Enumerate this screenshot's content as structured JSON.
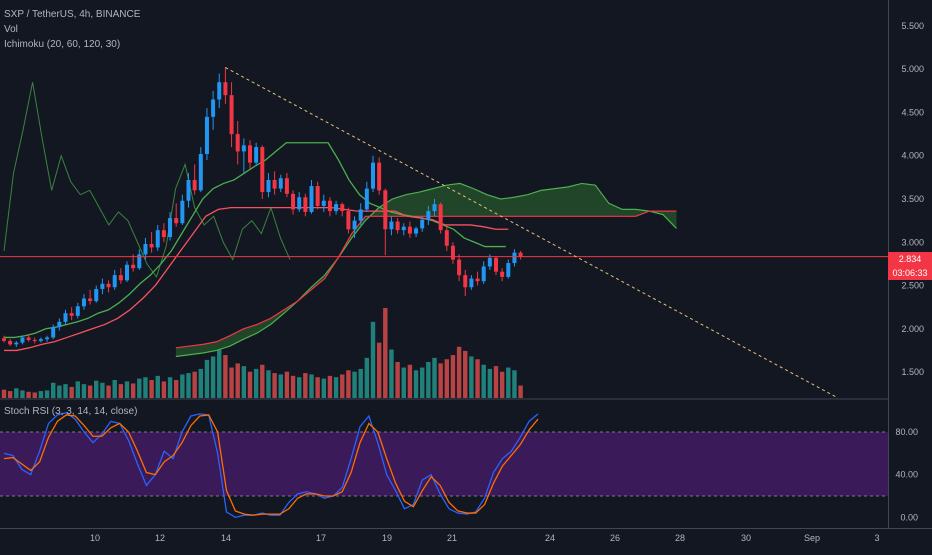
{
  "header": {
    "symbol_line": "SXP / TetherUS, 4h, BINANCE",
    "volume_label": "Vol",
    "ichimoku_label": "Ichimoku (20, 60, 120, 30)",
    "stoch_label": "Stoch RSI (3, 3, 14, 14, close)"
  },
  "price_scale": {
    "current_price": "2.834",
    "countdown": "03:06:33"
  },
  "colors": {
    "background": "#131722",
    "up": "#2196f3",
    "down": "#f23645",
    "vol_up": "#26a69a",
    "vol_down": "#ef5350",
    "cloud": "#2e6b2e",
    "stoch_band": "#3b1a5a"
  },
  "chart_data": [
    {
      "type": "candlestick",
      "symbol": "SXP / TetherUS",
      "timeframe": "4h",
      "exchange": "BINANCE",
      "y_range": [
        1.2,
        5.8
      ],
      "y_ticks": [
        "5.500",
        "5.000",
        "4.500",
        "4.000",
        "3.500",
        "3.000",
        "2.500",
        "2.000",
        "1.500"
      ],
      "x_ticks": [
        "10",
        "12",
        "14",
        "17",
        "19",
        "21",
        "24",
        "26",
        "28",
        "30",
        "Sep",
        "3"
      ],
      "last_price": 2.834,
      "candles": [
        [
          1.89,
          1.92,
          1.84,
          1.86
        ],
        [
          1.86,
          1.88,
          1.8,
          1.82
        ],
        [
          1.82,
          1.86,
          1.79,
          1.84
        ],
        [
          1.84,
          1.92,
          1.82,
          1.9
        ],
        [
          1.9,
          1.94,
          1.85,
          1.87
        ],
        [
          1.87,
          1.9,
          1.83,
          1.86
        ],
        [
          1.86,
          1.9,
          1.84,
          1.88
        ],
        [
          1.88,
          1.92,
          1.85,
          1.9
        ],
        [
          1.9,
          2.05,
          1.88,
          2.02
        ],
        [
          2.02,
          2.12,
          1.98,
          2.08
        ],
        [
          2.08,
          2.22,
          2.05,
          2.18
        ],
        [
          2.18,
          2.25,
          2.1,
          2.15
        ],
        [
          2.15,
          2.3,
          2.12,
          2.26
        ],
        [
          2.26,
          2.4,
          2.22,
          2.35
        ],
        [
          2.35,
          2.45,
          2.28,
          2.32
        ],
        [
          2.32,
          2.5,
          2.3,
          2.46
        ],
        [
          2.46,
          2.58,
          2.4,
          2.52
        ],
        [
          2.52,
          2.56,
          2.42,
          2.48
        ],
        [
          2.48,
          2.68,
          2.45,
          2.62
        ],
        [
          2.62,
          2.7,
          2.52,
          2.56
        ],
        [
          2.56,
          2.78,
          2.54,
          2.74
        ],
        [
          2.74,
          2.86,
          2.66,
          2.7
        ],
        [
          2.7,
          2.92,
          2.68,
          2.86
        ],
        [
          2.86,
          3.05,
          2.8,
          2.98
        ],
        [
          2.98,
          3.12,
          2.88,
          2.94
        ],
        [
          2.94,
          3.2,
          2.9,
          3.14
        ],
        [
          3.14,
          3.22,
          3.0,
          3.06
        ],
        [
          3.06,
          3.35,
          3.02,
          3.28
        ],
        [
          3.28,
          3.45,
          3.18,
          3.22
        ],
        [
          3.22,
          3.55,
          3.2,
          3.48
        ],
        [
          3.48,
          3.8,
          3.4,
          3.72
        ],
        [
          3.72,
          3.9,
          3.55,
          3.6
        ],
        [
          3.6,
          4.1,
          3.58,
          4.02
        ],
        [
          4.02,
          4.55,
          3.95,
          4.45
        ],
        [
          4.45,
          4.75,
          4.3,
          4.65
        ],
        [
          4.65,
          4.95,
          4.55,
          4.85
        ],
        [
          4.85,
          5.02,
          4.6,
          4.7
        ],
        [
          4.7,
          4.85,
          4.1,
          4.25
        ],
        [
          4.25,
          4.4,
          3.9,
          4.05
        ],
        [
          4.05,
          4.2,
          3.8,
          4.12
        ],
        [
          4.12,
          4.18,
          3.85,
          3.92
        ],
        [
          3.92,
          4.15,
          3.88,
          4.1
        ],
        [
          4.1,
          4.12,
          3.5,
          3.58
        ],
        [
          3.58,
          3.8,
          3.52,
          3.72
        ],
        [
          3.72,
          3.82,
          3.55,
          3.62
        ],
        [
          3.62,
          3.78,
          3.58,
          3.74
        ],
        [
          3.74,
          3.8,
          3.52,
          3.56
        ],
        [
          3.56,
          3.6,
          3.32,
          3.38
        ],
        [
          3.38,
          3.58,
          3.35,
          3.52
        ],
        [
          3.52,
          3.56,
          3.3,
          3.35
        ],
        [
          3.35,
          3.72,
          3.33,
          3.65
        ],
        [
          3.65,
          3.7,
          3.38,
          3.42
        ],
        [
          3.42,
          3.55,
          3.35,
          3.48
        ],
        [
          3.48,
          3.52,
          3.3,
          3.36
        ],
        [
          3.36,
          3.48,
          3.32,
          3.44
        ],
        [
          3.44,
          3.46,
          3.3,
          3.36
        ],
        [
          3.36,
          3.4,
          3.1,
          3.15
        ],
        [
          3.15,
          3.3,
          3.05,
          3.25
        ],
        [
          3.25,
          3.45,
          3.2,
          3.38
        ],
        [
          3.38,
          3.7,
          3.35,
          3.62
        ],
        [
          3.62,
          4.0,
          3.58,
          3.92
        ],
        [
          3.92,
          3.98,
          3.55,
          3.6
        ],
        [
          3.6,
          3.62,
          2.85,
          3.15
        ],
        [
          3.15,
          3.3,
          3.08,
          3.24
        ],
        [
          3.24,
          3.28,
          3.1,
          3.14
        ],
        [
          3.14,
          3.22,
          3.08,
          3.18
        ],
        [
          3.18,
          3.24,
          3.05,
          3.1
        ],
        [
          3.1,
          3.18,
          3.06,
          3.16
        ],
        [
          3.16,
          3.3,
          3.12,
          3.26
        ],
        [
          3.26,
          3.42,
          3.2,
          3.36
        ],
        [
          3.36,
          3.5,
          3.3,
          3.44
        ],
        [
          3.44,
          3.46,
          3.1,
          3.14
        ],
        [
          3.14,
          3.18,
          2.9,
          2.96
        ],
        [
          2.96,
          3.0,
          2.75,
          2.8
        ],
        [
          2.8,
          2.86,
          2.55,
          2.62
        ],
        [
          2.62,
          2.68,
          2.38,
          2.48
        ],
        [
          2.48,
          2.62,
          2.45,
          2.58
        ],
        [
          2.58,
          2.66,
          2.5,
          2.55
        ],
        [
          2.55,
          2.78,
          2.52,
          2.72
        ],
        [
          2.72,
          2.86,
          2.68,
          2.82
        ],
        [
          2.82,
          2.84,
          2.62,
          2.66
        ],
        [
          2.66,
          2.7,
          2.55,
          2.6
        ],
        [
          2.6,
          2.8,
          2.58,
          2.76
        ],
        [
          2.76,
          2.92,
          2.72,
          2.88
        ],
        [
          2.88,
          2.9,
          2.8,
          2.834
        ]
      ],
      "volume": [
        12,
        10,
        14,
        11,
        9,
        8,
        10,
        11,
        22,
        18,
        20,
        16,
        24,
        20,
        18,
        25,
        22,
        18,
        26,
        20,
        24,
        21,
        28,
        30,
        26,
        32,
        24,
        30,
        26,
        34,
        36,
        38,
        42,
        55,
        60,
        70,
        62,
        44,
        50,
        46,
        38,
        42,
        48,
        40,
        36,
        34,
        38,
        32,
        30,
        36,
        34,
        30,
        28,
        32,
        30,
        34,
        40,
        38,
        42,
        58,
        110,
        80,
        130,
        70,
        52,
        44,
        48,
        40,
        44,
        52,
        58,
        50,
        56,
        62,
        74,
        68,
        60,
        56,
        48,
        42,
        46,
        38,
        44,
        40,
        18
      ],
      "ichimoku": {
        "conversion": [
          1.9,
          1.9,
          1.92,
          1.95,
          2.0,
          2.02,
          2.05,
          2.08,
          2.12,
          2.18,
          2.22,
          2.3,
          2.4,
          2.52,
          2.62,
          2.75,
          2.9,
          3.1,
          3.3,
          3.5,
          3.62,
          3.68,
          3.72,
          3.8,
          3.88,
          3.95,
          4.05,
          4.15,
          4.15,
          4.15,
          4.15,
          4.15,
          3.95,
          3.72,
          3.55,
          3.45,
          3.4,
          3.35,
          3.32,
          3.3,
          3.28,
          3.25,
          3.2,
          3.15,
          3.05,
          3.0,
          2.95,
          2.95,
          2.95
        ],
        "base": [
          1.75,
          1.75,
          1.78,
          1.82,
          1.85,
          1.9,
          1.95,
          2.0,
          2.05,
          2.12,
          2.22,
          2.35,
          2.5,
          2.7,
          2.9,
          3.1,
          3.3,
          3.38,
          3.4,
          3.4,
          3.4,
          3.4,
          3.4,
          3.4,
          3.4,
          3.4,
          3.4,
          3.38,
          3.36,
          3.36,
          3.36,
          3.36,
          3.3,
          3.28,
          3.26,
          3.2,
          3.2,
          3.2,
          3.18,
          3.15,
          3.15
        ],
        "span_a": [
          1.68,
          1.7,
          1.72,
          1.75,
          1.8,
          1.88,
          1.95,
          2.05,
          2.18,
          2.32,
          2.48,
          2.62,
          2.82,
          3.05,
          3.25,
          3.4,
          3.5,
          3.55,
          3.58,
          3.62,
          3.66,
          3.68,
          3.62,
          3.55,
          3.5,
          3.52,
          3.55,
          3.6,
          3.62,
          3.64,
          3.68,
          3.66,
          3.45,
          3.38,
          3.38,
          3.36,
          3.32,
          3.16
        ],
        "span_b": [
          1.78,
          1.8,
          1.82,
          1.85,
          1.92,
          2.0,
          2.05,
          2.12,
          2.22,
          2.32,
          2.45,
          2.58,
          2.82,
          3.1,
          3.3,
          3.3,
          3.3,
          3.3,
          3.3,
          3.3,
          3.3,
          3.3,
          3.3,
          3.3,
          3.3,
          3.3,
          3.3,
          3.3,
          3.3,
          3.3,
          3.3,
          3.3,
          3.3,
          3.3,
          3.3,
          3.36,
          3.36,
          3.36
        ],
        "lagging": [
          2.9,
          3.8,
          4.3,
          4.85,
          4.2,
          3.6,
          4.0,
          3.7,
          3.55,
          3.6,
          3.4,
          3.2,
          3.35,
          3.25,
          3.0,
          2.75,
          2.6,
          2.95,
          3.62,
          3.9,
          3.4,
          3.2,
          3.3,
          3.0,
          2.8,
          3.15,
          3.25,
          3.1,
          3.4,
          3.05,
          2.8
        ]
      }
    },
    {
      "type": "line",
      "title": "Stoch RSI (3, 3, 14, 14, close)",
      "y_range": [
        -10,
        110
      ],
      "y_ticks": [
        "80.00",
        "40.00",
        "0.00"
      ],
      "series": [
        {
          "name": "K",
          "color": "#2962ff",
          "values": [
            60,
            58,
            45,
            40,
            62,
            88,
            96,
            98,
            92,
            80,
            70,
            78,
            90,
            88,
            72,
            50,
            30,
            40,
            62,
            55,
            80,
            95,
            97,
            96,
            60,
            5,
            0,
            2,
            2,
            4,
            2,
            2,
            14,
            22,
            24,
            22,
            18,
            20,
            28,
            55,
            85,
            95,
            70,
            40,
            25,
            8,
            12,
            35,
            40,
            22,
            8,
            4,
            3,
            5,
            18,
            42,
            55,
            62,
            75,
            90,
            97
          ]
        },
        {
          "name": "D",
          "color": "#ff6d00",
          "values": [
            55,
            56,
            50,
            44,
            52,
            75,
            90,
            96,
            95,
            86,
            76,
            76,
            84,
            88,
            80,
            62,
            42,
            40,
            52,
            58,
            70,
            86,
            95,
            96,
            80,
            25,
            6,
            3,
            2,
            3,
            3,
            3,
            8,
            18,
            22,
            22,
            20,
            20,
            24,
            42,
            70,
            88,
            80,
            55,
            32,
            15,
            10,
            25,
            38,
            30,
            14,
            6,
            4,
            4,
            12,
            32,
            48,
            58,
            68,
            82,
            92
          ]
        }
      ]
    }
  ]
}
